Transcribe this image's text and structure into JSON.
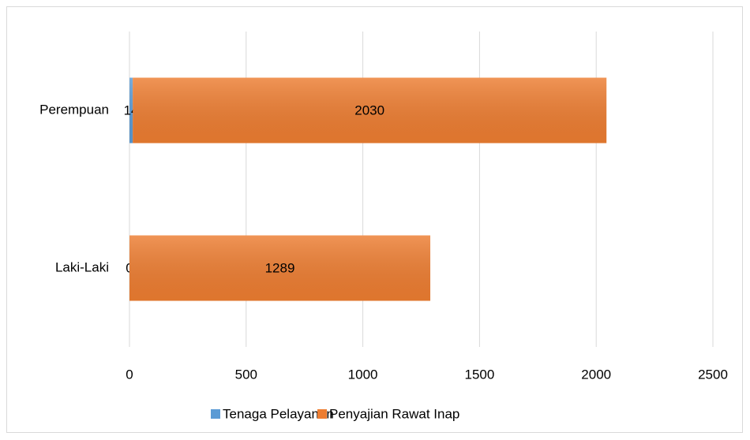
{
  "chart_data": {
    "type": "hbar_stacked",
    "categories": [
      "Laki-Laki",
      "Perempuan"
    ],
    "series": [
      {
        "name": "Tenaga Pelayanan",
        "color": "#5b9bd5",
        "values": [
          0,
          14
        ]
      },
      {
        "name": "Penyajian Rawat Inap",
        "color": "#ed7d31",
        "values": [
          1289,
          2030
        ]
      }
    ],
    "xlim": [
      0,
      2500
    ],
    "xticks": [
      0,
      500,
      1000,
      1500,
      2000,
      2500
    ],
    "grid": true,
    "legend": "bottom"
  }
}
